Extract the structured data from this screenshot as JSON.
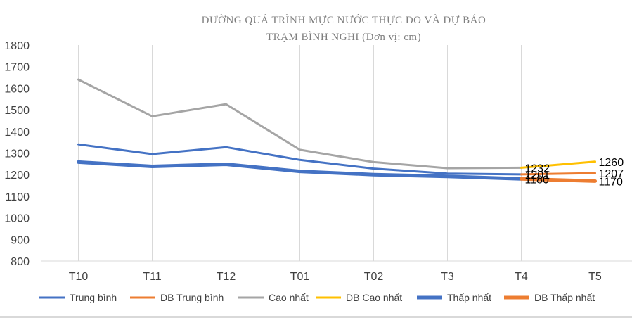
{
  "chart_data": {
    "type": "line",
    "title": "ĐƯỜNG QUÁ TRÌNH MỰC NƯỚC THỰC ĐO VÀ DỰ BÁO",
    "subtitle": "TRẠM BÌNH NGHI (Đơn vị: cm)",
    "categories": [
      "T10",
      "T11",
      "T12",
      "T01",
      "T02",
      "T3",
      "T4",
      "T5"
    ],
    "ylim": [
      800,
      1800
    ],
    "yticks": [
      800,
      900,
      1000,
      1100,
      1200,
      1300,
      1400,
      1500,
      1600,
      1700,
      1800
    ],
    "grid": "vertical",
    "legend_position": "bottom",
    "series": [
      {
        "name": "Trung bình",
        "color": "#4472c4",
        "width": 3,
        "values": [
          1340,
          1295,
          1327,
          1268,
          1228,
          1205,
          1201,
          null
        ]
      },
      {
        "name": "DB Trung bình",
        "color": "#ed7d31",
        "width": 3,
        "values": [
          null,
          null,
          null,
          null,
          null,
          null,
          1201,
          1207
        ]
      },
      {
        "name": "Cao nhất",
        "color": "#a5a5a5",
        "width": 3,
        "values": [
          1640,
          1470,
          1526,
          1315,
          1258,
          1230,
          1232,
          null
        ]
      },
      {
        "name": "DB Cao nhất",
        "color": "#ffc000",
        "width": 3,
        "values": [
          null,
          null,
          null,
          null,
          null,
          null,
          1232,
          1260
        ]
      },
      {
        "name": "Thấp nhất",
        "color": "#4472c4",
        "width": 5,
        "values": [
          1258,
          1238,
          1248,
          1215,
          1200,
          1192,
          1180,
          null
        ]
      },
      {
        "name": "DB Thấp nhất",
        "color": "#ed7d31",
        "width": 5,
        "values": [
          null,
          null,
          null,
          null,
          null,
          null,
          1180,
          1170
        ]
      }
    ],
    "data_labels": [
      {
        "category": "T4",
        "value": 1232,
        "text": "1232"
      },
      {
        "category": "T4",
        "value": 1201,
        "text": "1201"
      },
      {
        "category": "T4",
        "value": 1180,
        "text": "1180"
      },
      {
        "category": "T5",
        "value": 1260,
        "text": "1260"
      },
      {
        "category": "T5",
        "value": 1207,
        "text": "1207"
      },
      {
        "category": "T5",
        "value": 1170,
        "text": "1170"
      }
    ]
  }
}
